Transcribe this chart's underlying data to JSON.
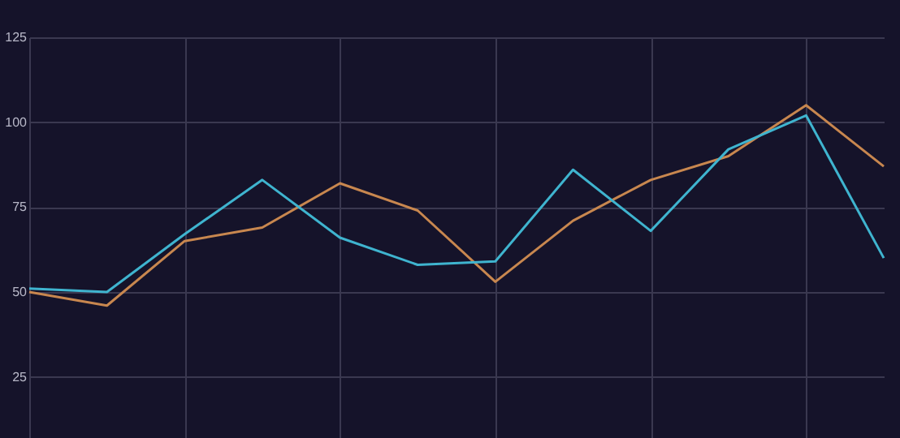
{
  "chart_data": {
    "type": "line",
    "categories": [
      null,
      null,
      null,
      null,
      null,
      null,
      null,
      null,
      null,
      null,
      null,
      null
    ],
    "series": [
      {
        "color": "#c8874f",
        "values": [
          50,
          46,
          65,
          69,
          82,
          74,
          53,
          71,
          83,
          90,
          105,
          87
        ]
      },
      {
        "color": "#3fb4cf",
        "values": [
          51,
          50,
          67,
          83,
          66,
          58,
          59,
          86,
          68,
          92,
          102,
          60
        ]
      }
    ],
    "ylim": [
      7,
      125
    ],
    "yticks": [
      25,
      50,
      75,
      100,
      125
    ],
    "grid": true,
    "marker": "none",
    "line_style": "solid"
  }
}
